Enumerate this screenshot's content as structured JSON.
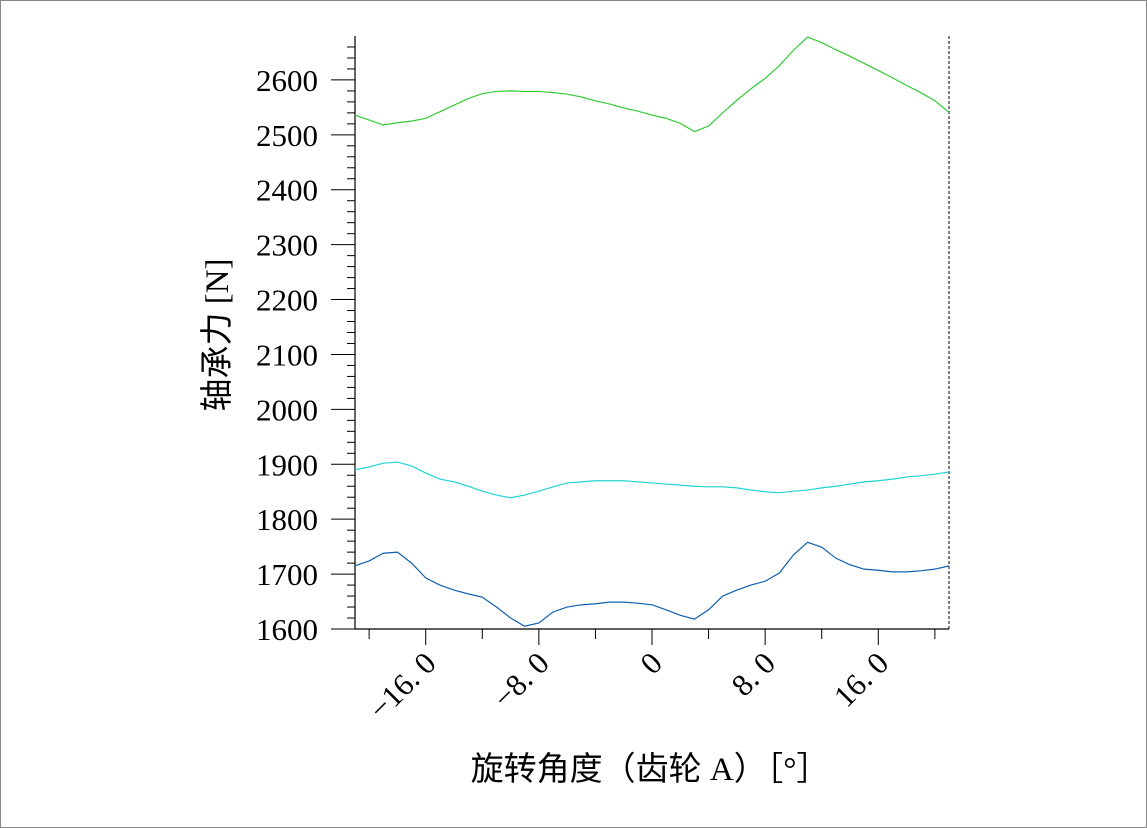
{
  "chart_data": {
    "type": "line",
    "xlabel": "旋转角度（齿轮 A）［°］",
    "ylabel": "轴承力 [N]",
    "x": [
      -21,
      -20,
      -19,
      -18,
      -17,
      -16,
      -15,
      -14,
      -13,
      -12,
      -11,
      -10,
      -9,
      -8,
      -7,
      -6,
      -5,
      -4,
      -3,
      -2,
      -1,
      0,
      1,
      2,
      3,
      4,
      5,
      6,
      7,
      8,
      9,
      10,
      11,
      12,
      13,
      14,
      15,
      16,
      17,
      18,
      19,
      20,
      21
    ],
    "series": [
      {
        "color": "#33cc33",
        "values": [
          2536,
          2527,
          2518,
          2522,
          2525,
          2530,
          2542,
          2554,
          2566,
          2575,
          2579,
          2580,
          2579,
          2579,
          2577,
          2574,
          2569,
          2562,
          2556,
          2549,
          2543,
          2536,
          2530,
          2521,
          2506,
          2516,
          2540,
          2563,
          2584,
          2603,
          2626,
          2654,
          2678,
          2668,
          2655,
          2643,
          2630,
          2617,
          2604,
          2590,
          2577,
          2562,
          2541
        ]
      },
      {
        "color": "#22d3d3",
        "values": [
          1890,
          1895,
          1902,
          1904,
          1897,
          1884,
          1873,
          1868,
          1860,
          1851,
          1844,
          1839,
          1844,
          1851,
          1859,
          1866,
          1868,
          1870,
          1870,
          1870,
          1868,
          1866,
          1864,
          1862,
          1860,
          1859,
          1859,
          1857,
          1853,
          1850,
          1848,
          1851,
          1853,
          1857,
          1860,
          1864,
          1868,
          1870,
          1873,
          1877,
          1879,
          1882,
          1886
        ]
      },
      {
        "color": "#1060b0",
        "values": [
          1715,
          1724,
          1738,
          1740,
          1720,
          1693,
          1680,
          1671,
          1664,
          1658,
          1640,
          1620,
          1605,
          1611,
          1631,
          1640,
          1644,
          1646,
          1649,
          1649,
          1647,
          1644,
          1635,
          1625,
          1618,
          1635,
          1660,
          1671,
          1680,
          1687,
          1702,
          1735,
          1758,
          1749,
          1729,
          1717,
          1709,
          1707,
          1704,
          1704,
          1706,
          1709,
          1715
        ]
      }
    ],
    "xlim": [
      -21,
      21
    ],
    "xticks": [
      {
        "value": -16,
        "label": "−16. 0"
      },
      {
        "value": -8,
        "label": "−8. 0"
      },
      0,
      {
        "value": 8,
        "label": "8. 0"
      },
      {
        "value": 16,
        "label": "16. 0"
      }
    ],
    "xminorticks": [
      -20,
      -12,
      -4,
      4,
      12,
      20
    ],
    "ylim": [
      1600,
      2680
    ],
    "yticks": [
      1600,
      1700,
      1800,
      1900,
      2000,
      2100,
      2200,
      2300,
      2400,
      2500,
      2600
    ],
    "yminorticks": [
      1620,
      1640,
      1660,
      1680,
      1720,
      1740,
      1760,
      1780,
      1820,
      1840,
      1860,
      1880,
      1920,
      1940,
      1960,
      1980,
      2020,
      2040,
      2060,
      2080,
      2120,
      2140,
      2160,
      2180,
      2220,
      2240,
      2260,
      2280,
      2320,
      2340,
      2360,
      2380,
      2420,
      2440,
      2460,
      2480,
      2520,
      2540,
      2560,
      2580,
      2620,
      2640,
      2660
    ]
  }
}
